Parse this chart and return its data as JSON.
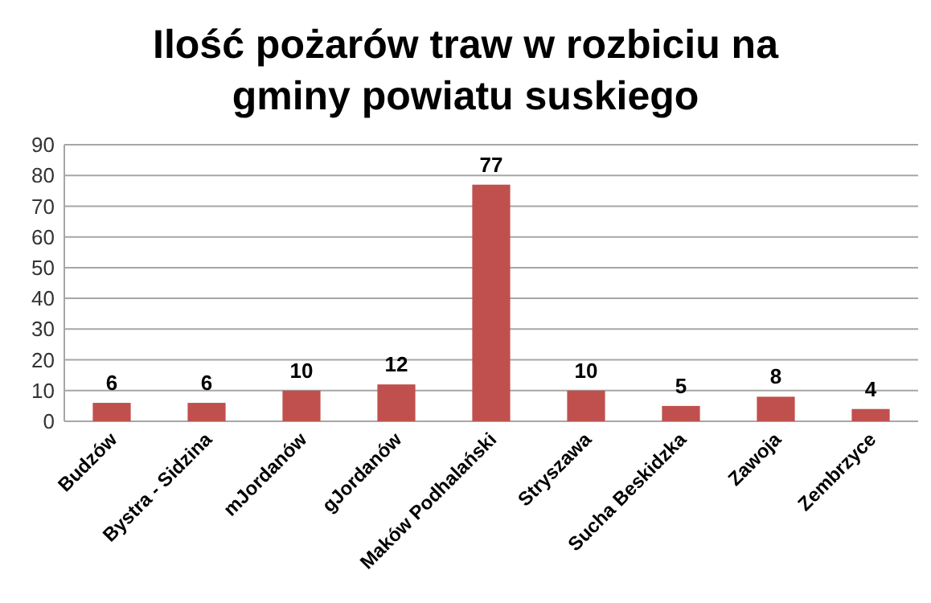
{
  "chart_data": {
    "type": "bar",
    "title": "Ilość pożarów traw w rozbiciu na gminy powiatu suskiego",
    "categories": [
      "Budzów",
      "Bystra - Sidzina",
      "mJordanów",
      "gJordanów",
      "Maków Podhalański",
      "Stryszawa",
      "Sucha Beskidzka",
      "Zawoja",
      "Zembrzyce"
    ],
    "values": [
      6,
      6,
      10,
      12,
      77,
      10,
      5,
      8,
      4
    ],
    "color": "#c0504d",
    "ylim": [
      0,
      90
    ],
    "yticks": [
      0,
      10,
      20,
      30,
      40,
      50,
      60,
      70,
      80,
      90
    ],
    "grid": "y",
    "data_labels": true
  }
}
